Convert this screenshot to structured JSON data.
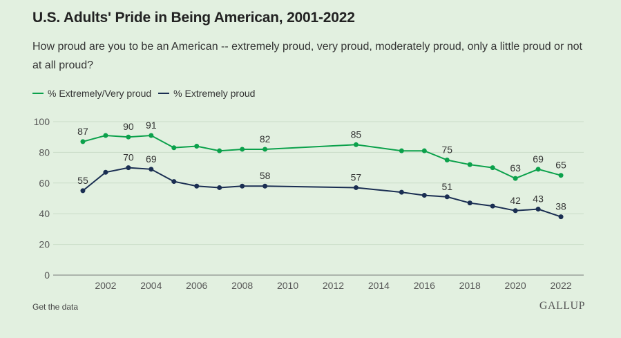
{
  "chart_data": {
    "type": "line",
    "title": "U.S. Adults' Pride in Being American, 2001-2022",
    "subtitle": "How proud are you to be an American -- extremely proud, very proud, moderately proud, only a little proud or not at all proud?",
    "xlabel": "",
    "ylabel": "",
    "xlim": [
      2000,
      2023
    ],
    "ylim": [
      0,
      100
    ],
    "x_ticks": [
      2002,
      2004,
      2006,
      2008,
      2010,
      2012,
      2014,
      2016,
      2018,
      2020,
      2022
    ],
    "y_ticks": [
      0,
      20,
      40,
      60,
      80,
      100
    ],
    "grid": "horizontal",
    "legend_position": "top-left",
    "series": [
      {
        "name": "% Extremely/Very proud",
        "color": "#0ba14b",
        "x": [
          2001,
          2002,
          2003,
          2004,
          2005,
          2006,
          2007,
          2008,
          2009,
          2013,
          2015,
          2016,
          2017,
          2018,
          2019,
          2020,
          2021,
          2022
        ],
        "values": [
          87,
          91,
          90,
          91,
          83,
          84,
          81,
          82,
          82,
          85,
          81,
          81,
          75,
          72,
          70,
          63,
          69,
          65
        ],
        "labeled_x": [
          2001,
          2003,
          2004,
          2009,
          2013,
          2017,
          2020,
          2021,
          2022
        ]
      },
      {
        "name": "% Extremely proud",
        "color": "#1a2e52",
        "x": [
          2001,
          2002,
          2003,
          2004,
          2005,
          2006,
          2007,
          2008,
          2009,
          2013,
          2015,
          2016,
          2017,
          2018,
          2019,
          2020,
          2021,
          2022
        ],
        "values": [
          55,
          67,
          70,
          69,
          61,
          58,
          57,
          58,
          58,
          57,
          54,
          52,
          51,
          47,
          45,
          42,
          43,
          38
        ],
        "labeled_x": [
          2001,
          2003,
          2004,
          2009,
          2013,
          2017,
          2020,
          2021,
          2022
        ]
      }
    ]
  },
  "footer": {
    "data_link": "Get the data",
    "brand": "GALLUP"
  }
}
